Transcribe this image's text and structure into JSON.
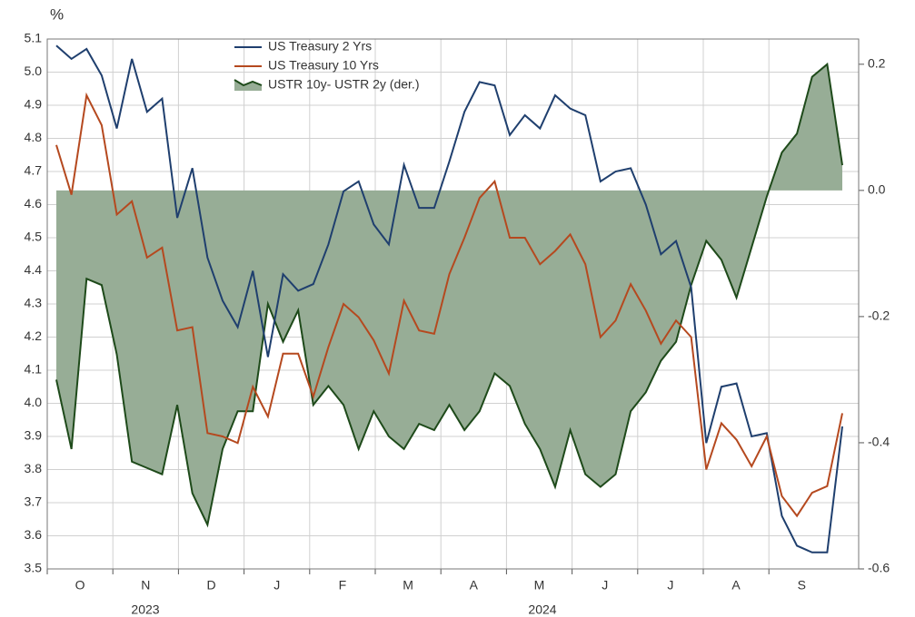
{
  "chart_data": {
    "type": "line",
    "y_axis_label": "%",
    "categories": [
      null,
      null,
      null,
      null,
      null,
      null,
      null,
      null,
      null,
      null,
      null,
      null,
      null,
      null,
      null,
      null,
      null,
      null,
      null,
      null,
      null,
      null,
      null,
      null,
      null,
      null,
      null,
      null,
      null,
      null,
      null,
      null,
      null,
      null,
      null,
      null,
      null,
      null,
      null,
      null,
      null,
      null,
      null,
      null,
      null,
      null,
      null,
      null,
      null,
      null,
      null,
      null,
      null
    ],
    "month_labels": [
      "O",
      "N",
      "D",
      "J",
      "F",
      "M",
      "A",
      "M",
      "J",
      "J",
      "A",
      "S"
    ],
    "year_labels": [
      "2023",
      "2024"
    ],
    "ylim": [
      3.5,
      5.1
    ],
    "yticks": [
      3.5,
      3.6,
      3.7,
      3.8,
      3.9,
      {
        "value": 4,
        "label": "4.0"
      },
      4.1,
      4.2,
      4.3,
      4.4,
      4.5,
      4.6,
      4.7,
      4.8,
      4.9,
      {
        "value": 5,
        "label": "5.0"
      },
      5.1
    ],
    "y2lim": [
      -0.6,
      0.24
    ],
    "y2ticks": [
      -0.6,
      -0.4,
      -0.2,
      {
        "value": 0,
        "label": "0.0"
      },
      0.2
    ],
    "grid": true,
    "legend": "top",
    "series": [
      {
        "name": "US Treasury 2 Yrs",
        "color": "#1f3f6e",
        "type": "line",
        "values": [
          5.08,
          5.04,
          5.07,
          4.99,
          4.83,
          5.04,
          4.88,
          4.92,
          4.56,
          4.71,
          4.44,
          4.31,
          4.23,
          4.4,
          4.14,
          4.39,
          4.34,
          4.36,
          4.48,
          4.64,
          4.67,
          4.54,
          4.48,
          4.72,
          4.59,
          4.59,
          4.73,
          4.88,
          4.97,
          4.96,
          4.81,
          4.87,
          4.83,
          4.93,
          4.89,
          4.87,
          4.67,
          4.7,
          4.71,
          4.6,
          4.45,
          4.49,
          4.35,
          3.88,
          4.05,
          4.06,
          3.9,
          3.91,
          3.66,
          3.57,
          3.55,
          3.55,
          3.93
        ]
      },
      {
        "name": "US Treasury 10 Yrs",
        "color": "#b5491f",
        "type": "line",
        "values": [
          4.78,
          4.63,
          4.93,
          4.84,
          4.57,
          4.61,
          4.44,
          4.47,
          4.22,
          4.23,
          3.91,
          3.9,
          3.88,
          4.05,
          3.96,
          4.15,
          4.15,
          4.02,
          4.17,
          4.3,
          4.26,
          4.19,
          4.09,
          4.31,
          4.22,
          4.21,
          4.39,
          4.5,
          4.62,
          4.67,
          4.5,
          4.5,
          4.42,
          4.46,
          4.51,
          4.42,
          4.2,
          4.25,
          4.36,
          4.28,
          4.18,
          4.25,
          4.2,
          3.8,
          3.94,
          3.89,
          3.81,
          3.9,
          3.72,
          3.66,
          3.73,
          3.75,
          3.97
        ]
      },
      {
        "name": "USTR 10y- USTR 2y (der.)",
        "color": "#1e4a1a",
        "fill": "#97ad96",
        "type": "area",
        "axis": "y2",
        "values": [
          -0.3,
          -0.41,
          -0.14,
          -0.15,
          -0.26,
          -0.43,
          -0.44,
          -0.45,
          -0.34,
          -0.48,
          -0.53,
          -0.41,
          -0.35,
          -0.35,
          -0.18,
          -0.24,
          -0.19,
          -0.34,
          -0.31,
          -0.34,
          -0.41,
          -0.35,
          -0.39,
          -0.41,
          -0.37,
          -0.38,
          -0.34,
          -0.38,
          -0.35,
          -0.29,
          -0.31,
          -0.37,
          -0.41,
          -0.47,
          -0.38,
          -0.45,
          -0.47,
          -0.45,
          -0.35,
          -0.32,
          -0.27,
          -0.24,
          -0.15,
          -0.08,
          -0.11,
          -0.17,
          -0.09,
          -0.01,
          0.06,
          0.09,
          0.18,
          0.2,
          0.04
        ]
      }
    ]
  }
}
